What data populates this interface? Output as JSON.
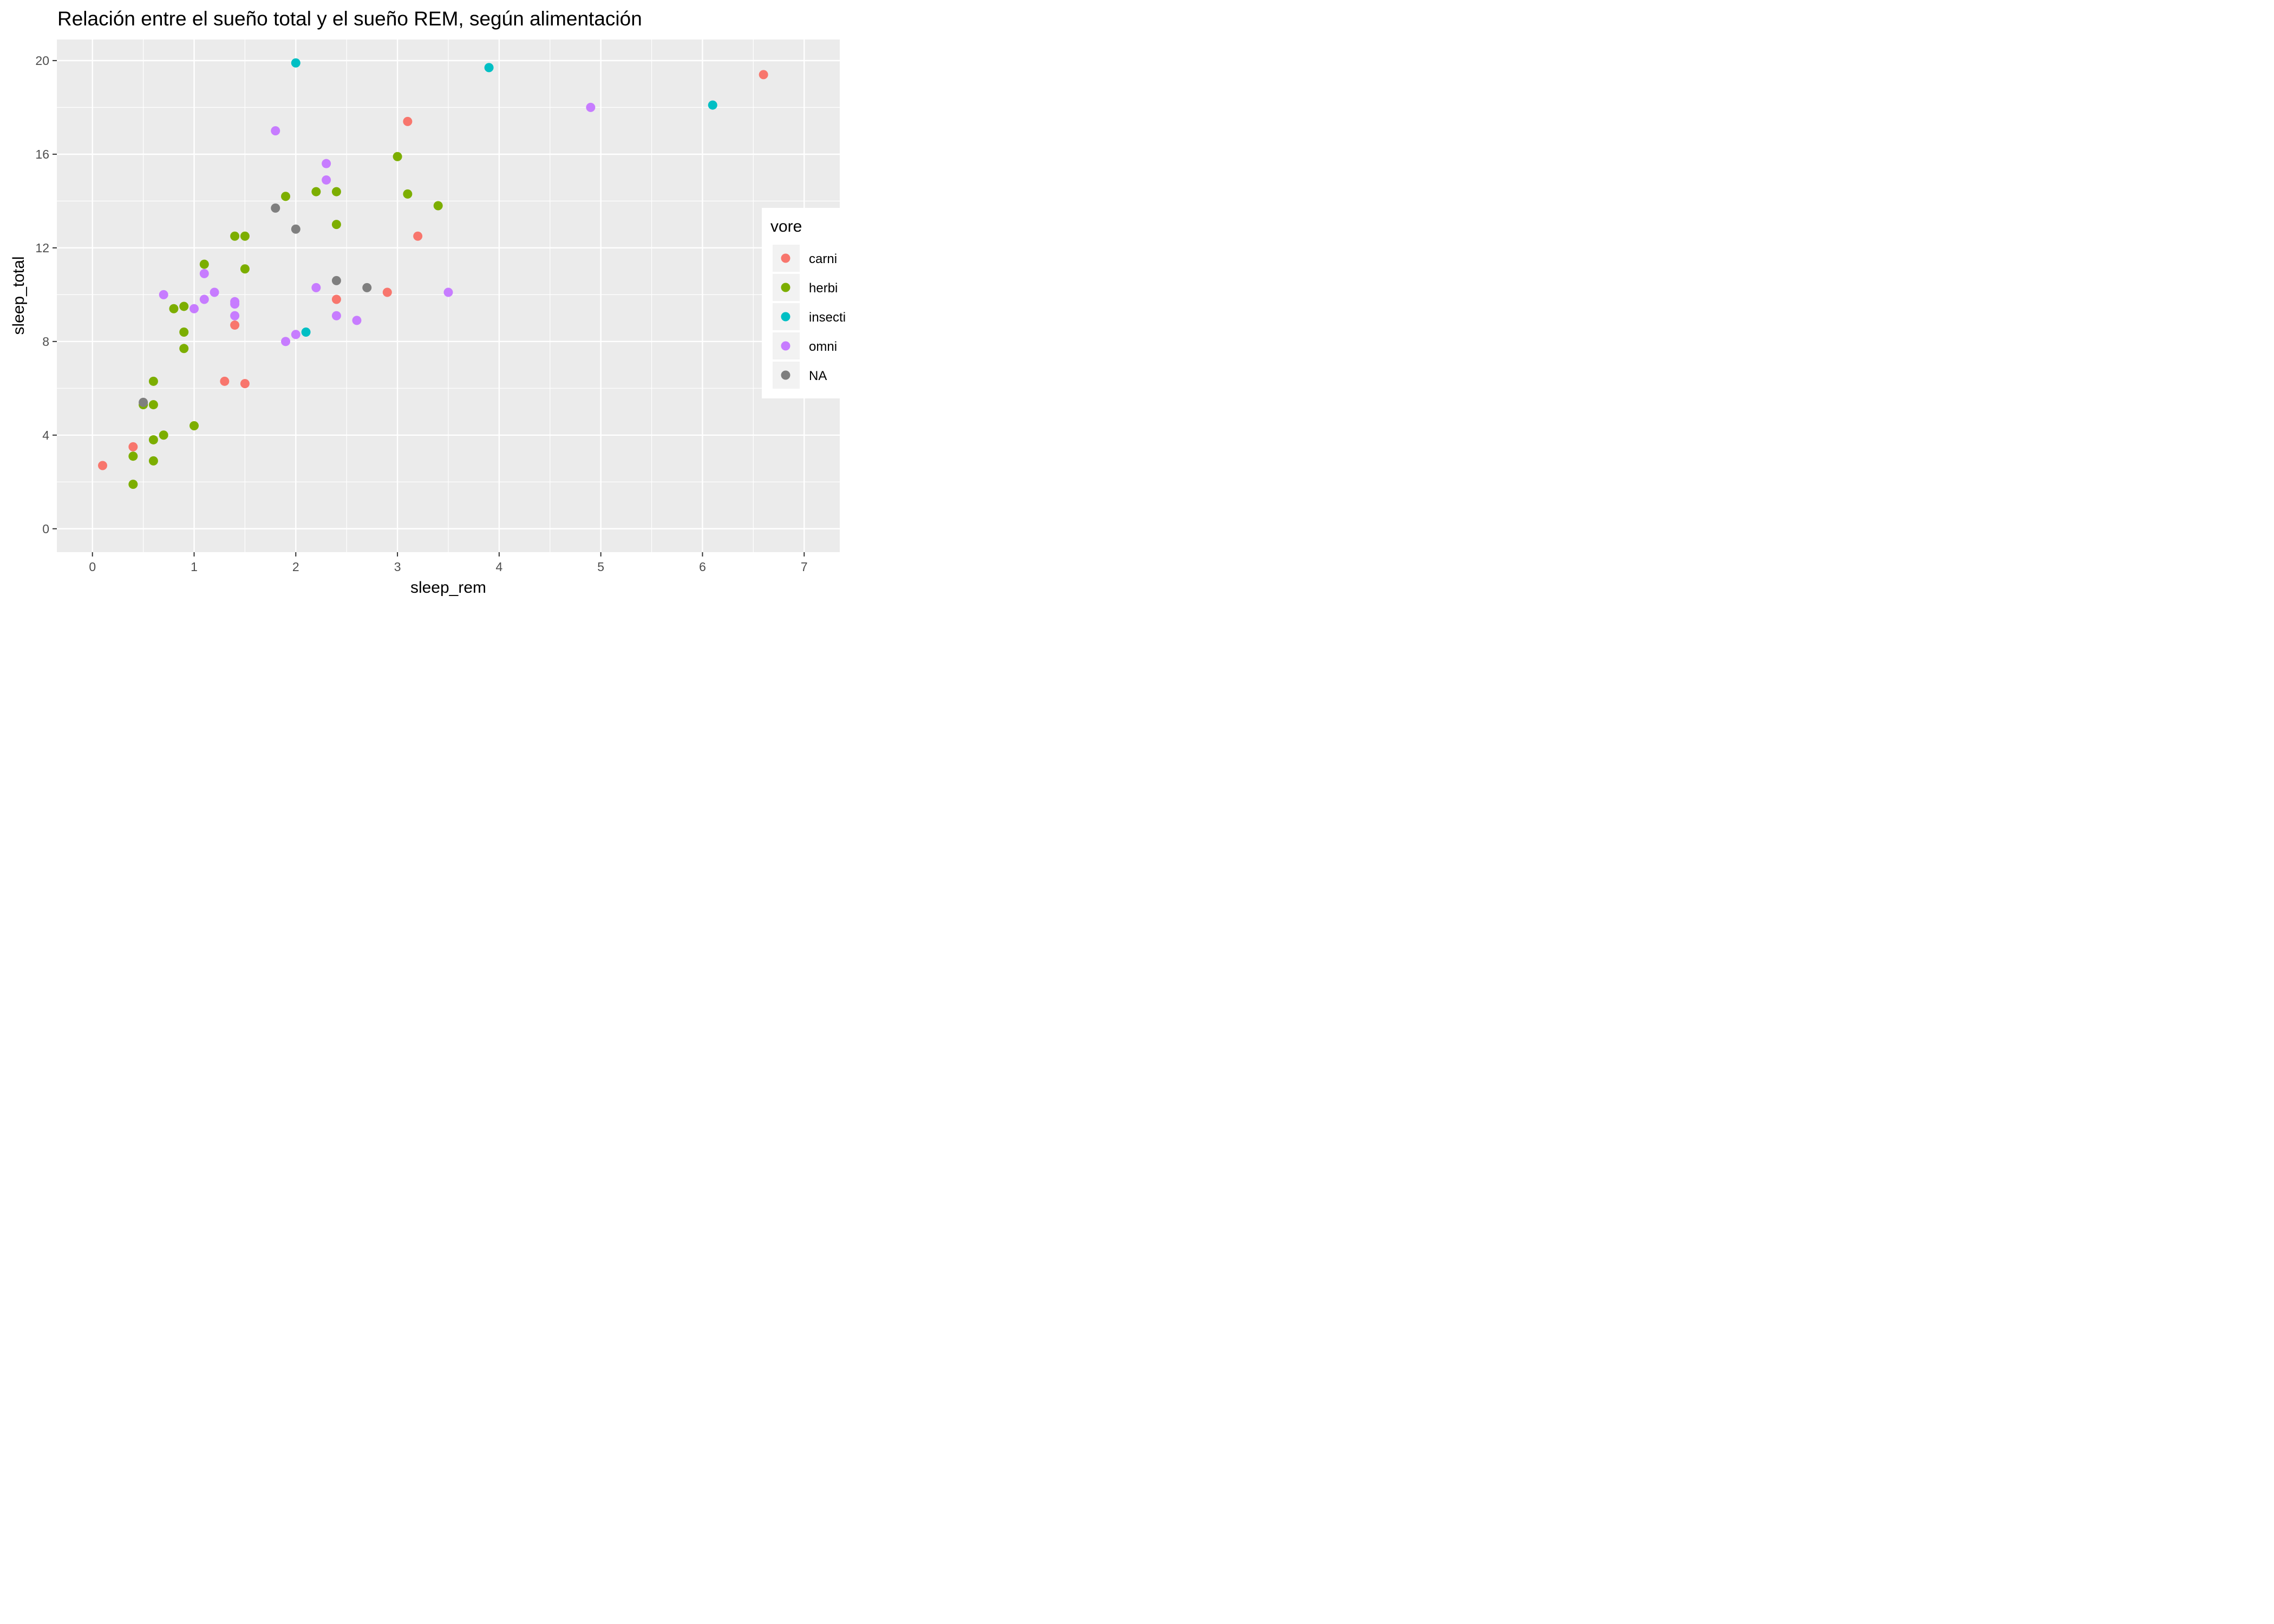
{
  "chart_data": {
    "type": "scatter",
    "title": "Relación entre el sueño total y el sueño REM, según alimentación",
    "xlabel": "sleep_rem",
    "ylabel": "sleep_total",
    "xlim": [
      -0.35,
      7.35
    ],
    "ylim": [
      -1.0,
      20.9
    ],
    "x_ticks": [
      0,
      1,
      2,
      3,
      4,
      5,
      6,
      7
    ],
    "x_tick_labels": [
      "0",
      "1",
      "2",
      "3",
      "4",
      "5",
      "6",
      "7"
    ],
    "y_ticks": [
      0,
      4,
      8,
      12,
      16,
      20
    ],
    "y_tick_labels": [
      "0",
      "4",
      "8",
      "12",
      "16",
      "20"
    ],
    "grid": true,
    "legend": {
      "title": "vore",
      "position": "right",
      "entries": [
        "carni",
        "herbi",
        "insecti",
        "omni",
        "NA"
      ]
    },
    "series": [
      {
        "name": "carni",
        "color": "#F8766D",
        "x": [
          0.1,
          0.4,
          1.3,
          1.4,
          1.5,
          2.4,
          2.9,
          3.1,
          3.2,
          6.6
        ],
        "y": [
          2.7,
          3.5,
          6.3,
          8.7,
          6.2,
          9.8,
          10.1,
          17.4,
          12.5,
          19.4
        ]
      },
      {
        "name": "herbi",
        "color": "#7CAE00",
        "x": [
          0.4,
          0.4,
          0.5,
          0.6,
          0.6,
          0.6,
          0.6,
          0.7,
          0.8,
          0.9,
          0.9,
          0.9,
          1.0,
          1.1,
          1.4,
          1.5,
          1.5,
          1.9,
          2.2,
          2.4,
          2.4,
          3.0,
          3.1,
          3.4
        ],
        "y": [
          1.9,
          3.1,
          5.3,
          2.9,
          3.8,
          5.3,
          6.3,
          4.0,
          9.4,
          7.7,
          8.4,
          9.5,
          4.4,
          11.3,
          12.5,
          12.5,
          11.1,
          14.2,
          14.4,
          14.4,
          13.0,
          15.9,
          14.3,
          13.8
        ]
      },
      {
        "name": "insecti",
        "color": "#00BFC4",
        "x": [
          2.0,
          2.1,
          3.9,
          6.1
        ],
        "y": [
          19.9,
          8.4,
          19.7,
          18.1
        ]
      },
      {
        "name": "omni",
        "color": "#C77CFF",
        "x": [
          0.7,
          1.0,
          1.1,
          1.1,
          1.2,
          1.4,
          1.4,
          1.4,
          1.8,
          1.9,
          2.0,
          2.2,
          2.3,
          2.3,
          2.4,
          2.6,
          3.5,
          4.9
        ],
        "y": [
          10.0,
          9.4,
          9.8,
          10.9,
          10.1,
          9.1,
          9.6,
          9.7,
          17.0,
          8.0,
          8.3,
          10.3,
          14.9,
          15.6,
          9.1,
          8.9,
          10.1,
          18.0
        ]
      },
      {
        "name": "NA",
        "color": "#7F7F7F",
        "x": [
          0.5,
          1.8,
          2.0,
          2.4,
          2.7
        ],
        "y": [
          5.4,
          13.7,
          12.8,
          10.6,
          10.3
        ]
      }
    ]
  }
}
